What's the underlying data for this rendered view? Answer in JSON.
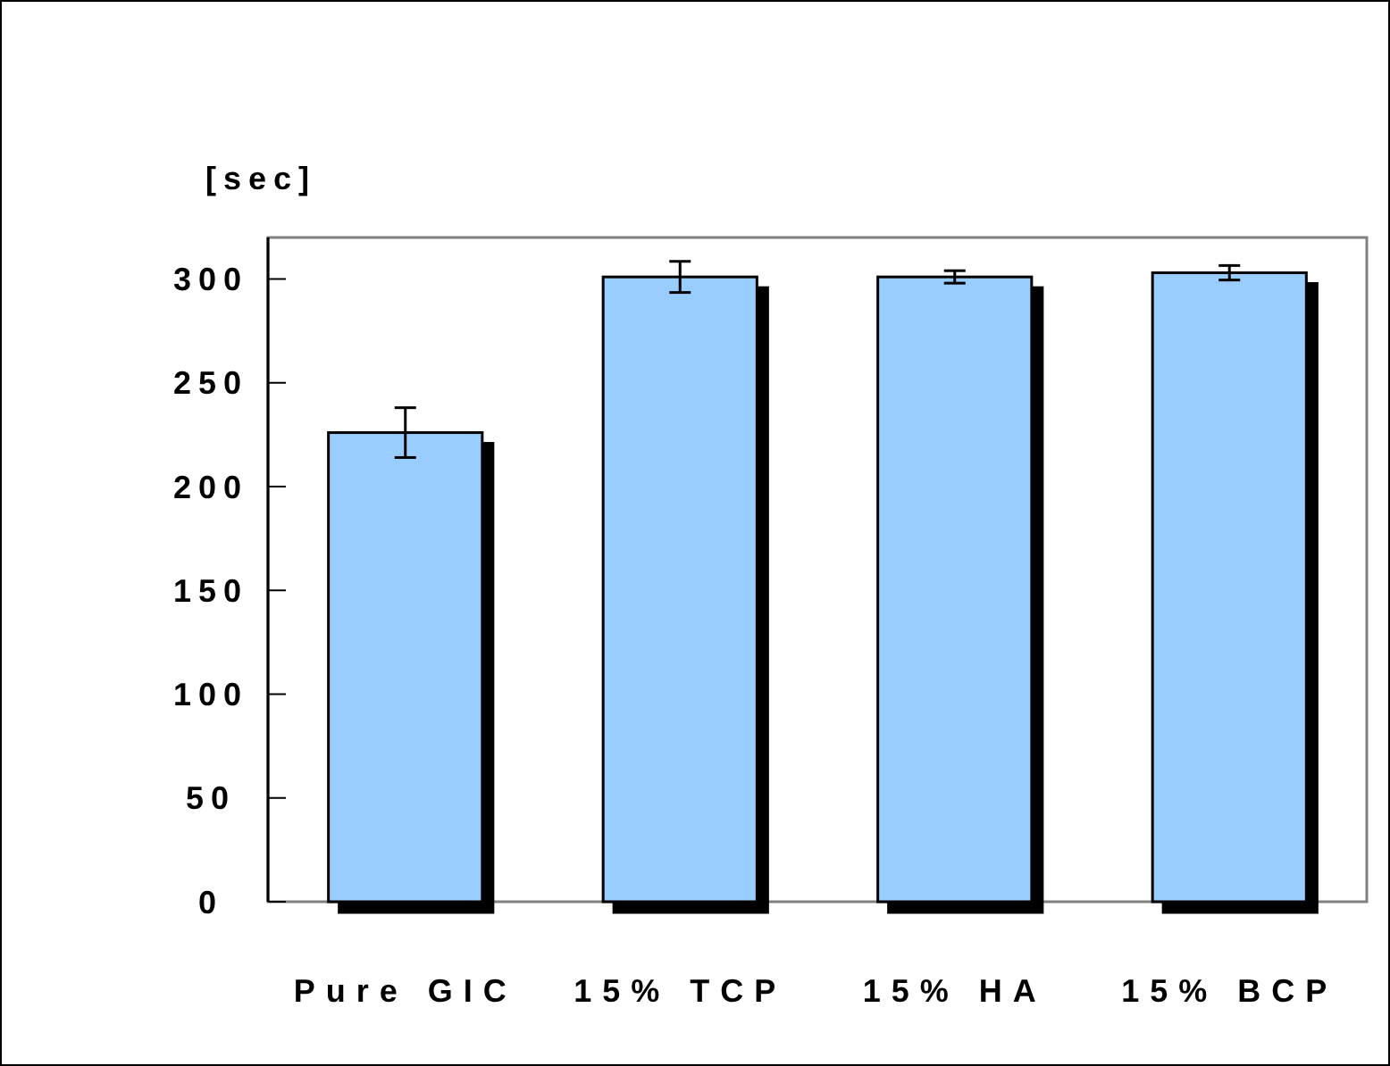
{
  "chart_data": {
    "type": "bar",
    "ylabel": "[sec]",
    "categories": [
      "Pure GIC",
      "15% TCP",
      "15% HA",
      "15% BCP"
    ],
    "values": [
      226,
      301,
      301,
      303
    ],
    "errors": [
      12,
      7.5,
      3,
      3.5
    ],
    "color": "#99ccff",
    "ylim": [
      0,
      320
    ],
    "yticks": [
      0,
      50,
      100,
      150,
      200,
      250,
      300
    ],
    "grid": false
  }
}
